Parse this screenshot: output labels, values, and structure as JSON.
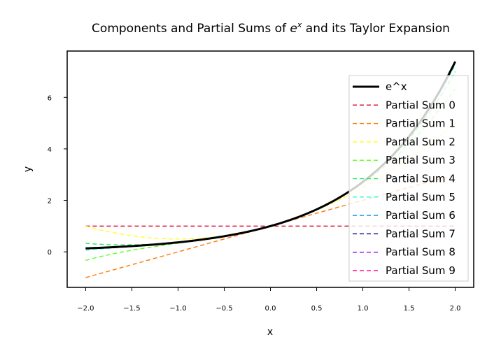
{
  "chart_data": {
    "type": "line",
    "title": "Components and Partial Sums of e^x and its Taylor Expansion",
    "title_prefix": "Components and Partial Sums of ",
    "title_math_base": "e",
    "title_math_sup": "x",
    "title_suffix": " and its Taylor Expansion",
    "xlabel": "x",
    "ylabel": "y",
    "xlim": [
      -2.2,
      2.2
    ],
    "ylim": [
      -1.38,
      7.8
    ],
    "xticks": [
      -2.0,
      -1.5,
      -1.0,
      -0.5,
      0.0,
      0.5,
      1.0,
      1.5,
      2.0
    ],
    "xtick_labels": [
      "−2.0",
      "−1.5",
      "−1.0",
      "−0.5",
      "0.0",
      "0.5",
      "1.0",
      "1.5",
      "2.0"
    ],
    "yticks": [
      0,
      2,
      4,
      6
    ],
    "ytick_labels": [
      "0",
      "2",
      "4",
      "6"
    ],
    "x_range": [
      -2,
      2
    ],
    "grid": false,
    "legend_position": "upper right",
    "series": [
      {
        "name": "e^x",
        "function": "exp",
        "color": "#000000",
        "style": "solid",
        "width": 3
      },
      {
        "name": "Partial Sum 0",
        "order": 0,
        "color": "#dc143c",
        "style": "dashed"
      },
      {
        "name": "Partial Sum 1",
        "order": 1,
        "color": "#ff7f0e",
        "style": "dashed"
      },
      {
        "name": "Partial Sum 2",
        "order": 2,
        "color": "#ffff33",
        "style": "dashed"
      },
      {
        "name": "Partial Sum 3",
        "order": 3,
        "color": "#66ff33",
        "style": "dashed"
      },
      {
        "name": "Partial Sum 4",
        "order": 4,
        "color": "#33e66b",
        "style": "dashed"
      },
      {
        "name": "Partial Sum 5",
        "order": 5,
        "color": "#33ffcc",
        "style": "dashed"
      },
      {
        "name": "Partial Sum 6",
        "order": 6,
        "color": "#1e9de0",
        "style": "dashed"
      },
      {
        "name": "Partial Sum 7",
        "order": 7,
        "color": "#1a1aa8",
        "style": "dashed"
      },
      {
        "name": "Partial Sum 8",
        "order": 8,
        "color": "#a020f0",
        "style": "dashed"
      },
      {
        "name": "Partial Sum 9",
        "order": 9,
        "color": "#ff1493",
        "style": "dashed"
      }
    ]
  }
}
